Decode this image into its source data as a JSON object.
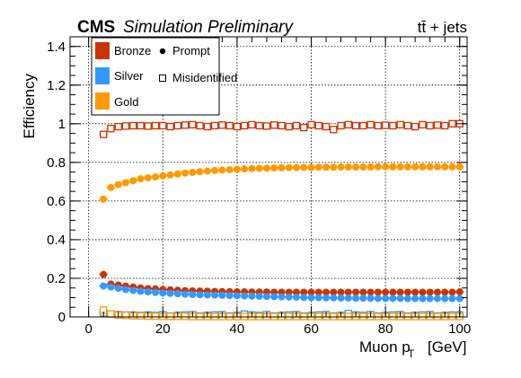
{
  "chart_data": {
    "type": "scatter",
    "experiment": "CMS",
    "label": "Simulation Preliminary",
    "process": "tt̄ + jets",
    "xlabel": "Muon p",
    "xlabel_sub": "T",
    "xlabel_unit": "[GeV]",
    "ylabel": "Efficiency",
    "xlim": [
      -5,
      102
    ],
    "ylim": [
      0,
      1.45
    ],
    "xticks": [
      "0",
      "20",
      "40",
      "60",
      "80",
      "100"
    ],
    "yticks": [
      "0",
      "0.2",
      "0.4",
      "0.6",
      "0.8",
      "1",
      "1.2",
      "1.4"
    ],
    "grid": true,
    "legend_position": "top-left",
    "legend": {
      "working_points": [
        {
          "name": "Bronze",
          "color": "#cc3300"
        },
        {
          "name": "Silver",
          "color": "#3399ff"
        },
        {
          "name": "Gold",
          "color": "#ff9900"
        }
      ],
      "markers": [
        {
          "name": "Prompt",
          "style": "filled-circle"
        },
        {
          "name": "Misidentified",
          "style": "open-square"
        }
      ]
    },
    "x": [
      4,
      6,
      8,
      10,
      12,
      14,
      16,
      18,
      20,
      22,
      24,
      26,
      28,
      30,
      32,
      34,
      36,
      38,
      40,
      42,
      44,
      46,
      48,
      50,
      52,
      54,
      56,
      58,
      60,
      62,
      64,
      66,
      68,
      70,
      72,
      74,
      76,
      78,
      80,
      82,
      84,
      86,
      88,
      90,
      92,
      94,
      96,
      98,
      100
    ],
    "series": [
      {
        "name": "Gold Prompt",
        "color": "#ff9900",
        "marker": "filled-circle",
        "values": [
          0.61,
          0.67,
          0.685,
          0.695,
          0.705,
          0.715,
          0.72,
          0.725,
          0.73,
          0.735,
          0.74,
          0.745,
          0.748,
          0.752,
          0.755,
          0.758,
          0.76,
          0.762,
          0.764,
          0.766,
          0.768,
          0.769,
          0.77,
          0.771,
          0.772,
          0.773,
          0.773,
          0.774,
          0.774,
          0.775,
          0.775,
          0.775,
          0.776,
          0.776,
          0.776,
          0.776,
          0.776,
          0.777,
          0.777,
          0.777,
          0.777,
          0.777,
          0.777,
          0.777,
          0.777,
          0.777,
          0.777,
          0.777,
          0.777
        ]
      },
      {
        "name": "Bronze Prompt",
        "color": "#cc3300",
        "marker": "filled-circle",
        "values": [
          0.22,
          0.17,
          0.165,
          0.16,
          0.155,
          0.15,
          0.147,
          0.145,
          0.142,
          0.14,
          0.138,
          0.136,
          0.135,
          0.134,
          0.133,
          0.132,
          0.131,
          0.131,
          0.13,
          0.13,
          0.129,
          0.129,
          0.129,
          0.128,
          0.128,
          0.128,
          0.128,
          0.128,
          0.128,
          0.128,
          0.128,
          0.128,
          0.128,
          0.128,
          0.128,
          0.128,
          0.128,
          0.128,
          0.128,
          0.128,
          0.128,
          0.128,
          0.128,
          0.128,
          0.128,
          0.128,
          0.128,
          0.128,
          0.13
        ]
      },
      {
        "name": "Silver Prompt",
        "color": "#3399ff",
        "marker": "filled-circle",
        "values": [
          0.16,
          0.155,
          0.148,
          0.142,
          0.137,
          0.133,
          0.13,
          0.127,
          0.124,
          0.122,
          0.12,
          0.118,
          0.116,
          0.115,
          0.114,
          0.113,
          0.112,
          0.111,
          0.11,
          0.109,
          0.108,
          0.107,
          0.106,
          0.105,
          0.104,
          0.103,
          0.102,
          0.101,
          0.1,
          0.1,
          0.099,
          0.099,
          0.098,
          0.098,
          0.097,
          0.097,
          0.097,
          0.096,
          0.096,
          0.096,
          0.096,
          0.095,
          0.095,
          0.095,
          0.095,
          0.095,
          0.095,
          0.095,
          0.095
        ]
      },
      {
        "name": "Bronze Misidentified",
        "color": "#cc3300",
        "marker": "open-square",
        "values": [
          0.945,
          0.975,
          0.985,
          0.988,
          0.99,
          0.99,
          0.988,
          0.99,
          0.99,
          0.985,
          0.99,
          0.993,
          0.995,
          0.99,
          0.985,
          0.99,
          0.993,
          0.99,
          0.985,
          0.99,
          0.995,
          0.99,
          0.988,
          0.993,
          0.99,
          0.985,
          0.99,
          0.98,
          0.995,
          0.99,
          0.985,
          0.97,
          0.99,
          0.995,
          0.99,
          0.99,
          0.995,
          0.99,
          0.992,
          0.99,
          0.995,
          0.99,
          0.985,
          0.995,
          0.99,
          0.993,
          0.99,
          1.0,
          1.0
        ]
      },
      {
        "name": "Silver Misidentified",
        "color": "#3399ff",
        "marker": "open-square",
        "values": [
          0.02,
          0.015,
          0.012,
          0.01,
          0.01,
          0.008,
          0.01,
          0.008,
          0.012,
          0.005,
          0.008,
          0.01,
          0.012,
          0.005,
          0.008,
          0.01,
          0.012,
          0.005,
          0.008,
          0.015,
          0.01,
          0.008,
          0.012,
          0.005,
          0.008,
          0.01,
          0.012,
          0.005,
          0.008,
          0.01,
          0.012,
          0.005,
          0.008,
          0.018,
          0.01,
          0.008,
          0.012,
          0.005,
          0.008,
          0.01,
          0.012,
          0.005,
          0.008,
          0.01,
          0.012,
          0.005,
          0.008,
          0.01,
          0.01
        ]
      },
      {
        "name": "Gold Misidentified",
        "color": "#ff9900",
        "marker": "open-square",
        "values": [
          0.035,
          0.015,
          0.01,
          0.008,
          0.006,
          0.005,
          0.004,
          0.004,
          0.003,
          0.003,
          0.003,
          0.003,
          0.002,
          0.002,
          0.002,
          0.002,
          0.002,
          0.002,
          0.002,
          0.002,
          0.002,
          0.002,
          0.002,
          0.002,
          0.002,
          0.002,
          0.002,
          0.002,
          0.002,
          0.002,
          0.002,
          0.002,
          0.002,
          0.002,
          0.002,
          0.002,
          0.002,
          0.002,
          0.002,
          0.002,
          0.002,
          0.002,
          0.002,
          0.002,
          0.002,
          0.002,
          0.002,
          0.002,
          0.002
        ]
      }
    ]
  }
}
